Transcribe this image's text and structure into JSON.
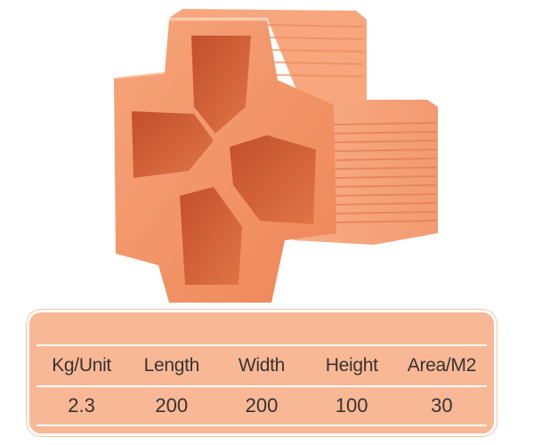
{
  "product": {
    "image": "clay-cross-vent-block"
  },
  "specs": {
    "headers": [
      "Kg/Unit",
      "Length",
      "Width",
      "Height",
      "Area/M2"
    ],
    "values": [
      "2.3",
      "200",
      "200",
      "100",
      "30"
    ]
  },
  "colors": {
    "panel": "#f8b896",
    "brick_front": "#f08a5c",
    "brick_shadow": "#d2613b",
    "text": "#3a3230"
  }
}
